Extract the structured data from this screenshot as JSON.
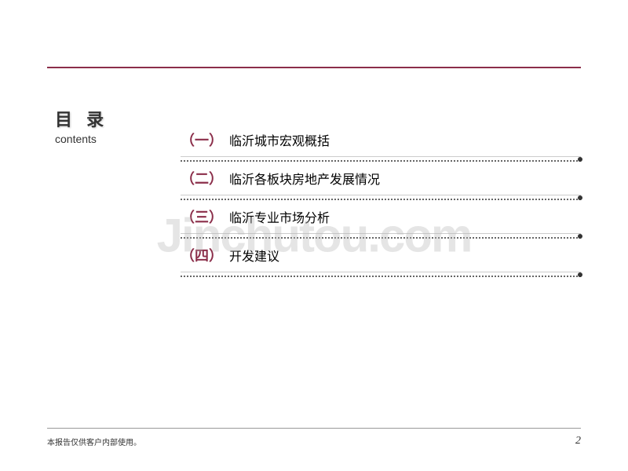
{
  "colors": {
    "accent": "#8b2e4a",
    "text": "#000000",
    "watermark": "rgba(180,180,180,0.35)",
    "line": "#cccccc",
    "dotted": "#666666"
  },
  "title": {
    "zh": "目 录",
    "en": "contents"
  },
  "toc": [
    {
      "number": "（一）",
      "text": "临沂城市宏观概括"
    },
    {
      "number": "（二）",
      "text": "临沂各板块房地产发展情况"
    },
    {
      "number": "（三）",
      "text": "临沂专业市场分析"
    },
    {
      "number": "（四）",
      "text": "开发建议"
    }
  ],
  "watermark": "Jinchutou.com",
  "footer": {
    "text": "本报告仅供客户内部使用。",
    "page": "2"
  }
}
